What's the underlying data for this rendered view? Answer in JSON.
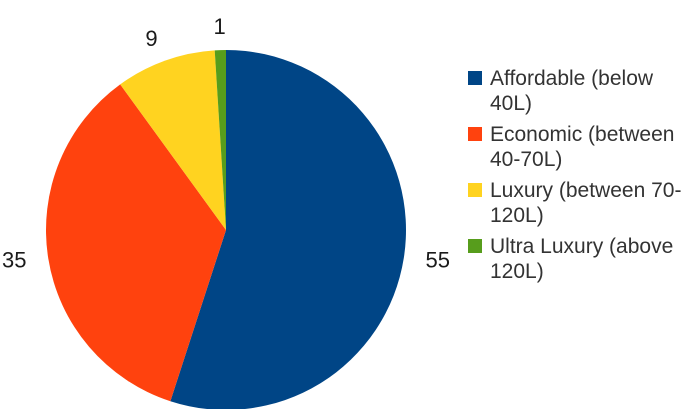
{
  "chart_data": {
    "type": "pie",
    "title": "",
    "categories": [
      "Affordable (below 40L)",
      "Economic (between 40-70L)",
      "Luxury (between 70-120L)",
      "Ultra Luxury (above 120L)"
    ],
    "values": [
      55,
      35,
      9,
      1
    ],
    "colors": [
      "#004586",
      "#ff420e",
      "#ffd320",
      "#579d1c"
    ],
    "data_labels": [
      "55",
      "35",
      "9",
      "1"
    ],
    "legend_position": "right",
    "start_angle": "top",
    "direction": "clockwise"
  }
}
